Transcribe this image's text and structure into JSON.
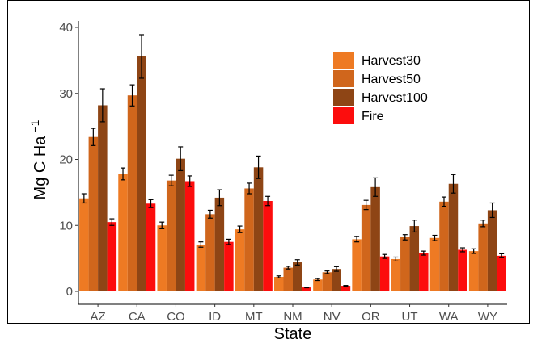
{
  "chart_data": {
    "type": "bar",
    "xlabel": "State",
    "ylabel": "Mg C Ha",
    "ylabel_superscript": "−1",
    "ylim": [
      0,
      40
    ],
    "yticks": [
      0,
      10,
      20,
      30,
      40
    ],
    "grid": false,
    "legend_position": "top-right",
    "categories": [
      "AZ",
      "CA",
      "CO",
      "ID",
      "MT",
      "NM",
      "NV",
      "OR",
      "UT",
      "WA",
      "WY"
    ],
    "series": [
      {
        "name": "Harvest30",
        "color": "#ee7a23",
        "values": [
          14.1,
          17.8,
          10.0,
          7.1,
          9.4,
          2.2,
          1.8,
          7.9,
          4.9,
          8.1,
          6.1
        ],
        "errors": [
          0.7,
          0.9,
          0.5,
          0.4,
          0.5,
          0.15,
          0.15,
          0.4,
          0.3,
          0.4,
          0.35
        ]
      },
      {
        "name": "Harvest50",
        "color": "#d0661c",
        "values": [
          23.4,
          29.7,
          16.8,
          11.7,
          15.6,
          3.6,
          2.9,
          13.1,
          8.2,
          13.6,
          10.3
        ],
        "errors": [
          1.3,
          1.6,
          0.8,
          0.6,
          0.8,
          0.2,
          0.2,
          0.7,
          0.4,
          0.7,
          0.5
        ]
      },
      {
        "name": "Harvest100",
        "color": "#8e4515",
        "values": [
          28.2,
          35.6,
          20.1,
          14.2,
          18.8,
          4.4,
          3.4,
          15.8,
          9.9,
          16.3,
          12.3
        ],
        "errors": [
          2.5,
          3.3,
          1.8,
          1.2,
          1.7,
          0.4,
          0.35,
          1.4,
          0.9,
          1.4,
          1.1
        ]
      },
      {
        "name": "Fire",
        "color": "#fc0d0d",
        "values": [
          10.5,
          13.3,
          16.7,
          7.5,
          13.7,
          0.6,
          0.85,
          5.3,
          5.8,
          6.3,
          5.4
        ],
        "errors": [
          0.5,
          0.6,
          0.8,
          0.4,
          0.7,
          0.05,
          0.05,
          0.3,
          0.3,
          0.3,
          0.3
        ]
      }
    ]
  }
}
